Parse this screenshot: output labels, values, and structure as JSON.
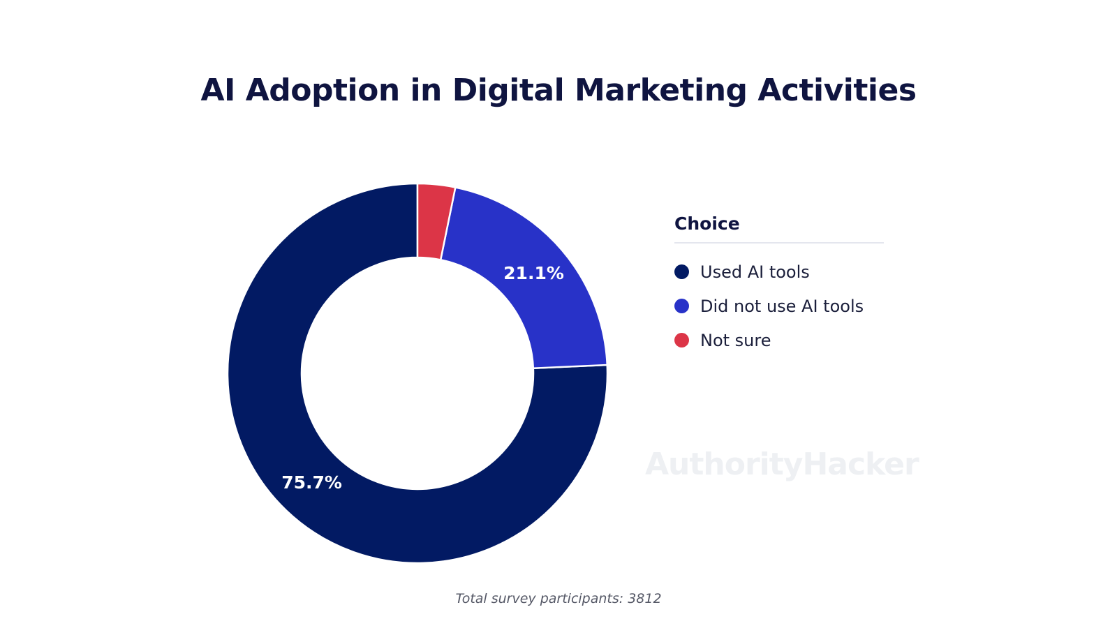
{
  "chart_data": {
    "type": "pie",
    "title": "AI Adoption in Digital Marketing Activities",
    "legend_title": "Choice",
    "legend_position": "right",
    "donut": true,
    "slices": [
      {
        "label": "Used AI tools",
        "value": 75.7,
        "value_label": "75.7%",
        "color": "#021a63"
      },
      {
        "label": "Did not use AI tools",
        "value": 21.1,
        "value_label": "21.1%",
        "color": "#2832c8"
      },
      {
        "label": "Not sure",
        "value": 3.2,
        "value_label": "",
        "color": "#dc3547"
      }
    ],
    "footnote": "Total survey participants: 3812"
  },
  "watermark": "AuthorityHacker"
}
